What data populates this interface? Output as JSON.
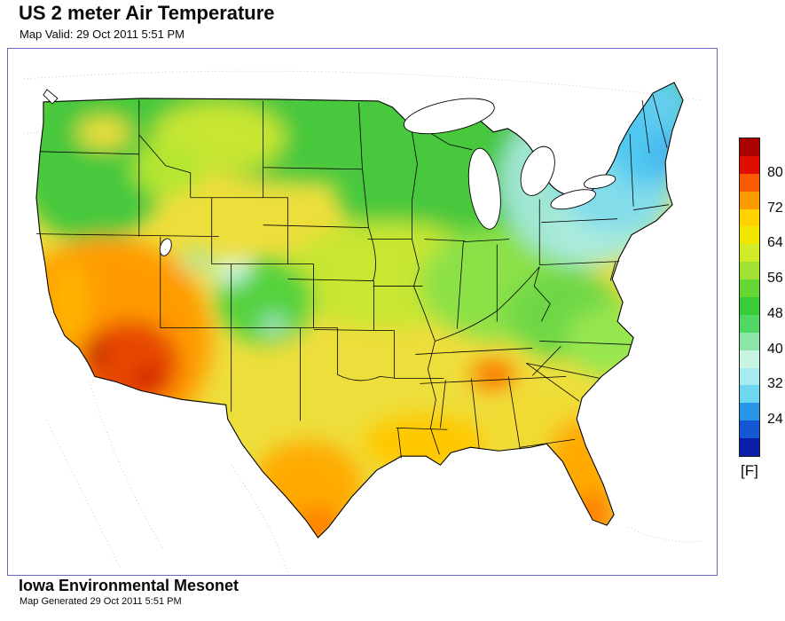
{
  "header": {
    "title": "US 2 meter Air Temperature",
    "valid_time": "Map Valid: 29 Oct 2011 5:51 PM"
  },
  "colorbar": {
    "unit_label": "[F]",
    "ticks": [
      80,
      72,
      64,
      56,
      48,
      40,
      32,
      24
    ],
    "colors_top_to_bottom": [
      "#aa0000",
      "#e10e00",
      "#fa5a00",
      "#ff9b00",
      "#ffd200",
      "#f0e600",
      "#d2eb28",
      "#a0e132",
      "#64d732",
      "#37cd37",
      "#50d764",
      "#8ce6aa",
      "#c8f5e1",
      "#a5ebf0",
      "#6ed7f0",
      "#2896e6",
      "#1457d2",
      "#0a1eaa"
    ]
  },
  "map": {
    "frame_border_color": "#6464c8",
    "land_outline_color": "#000000",
    "graticule_color": "#f0b9b9"
  },
  "footer": {
    "org": "Iowa Environmental Mesonet",
    "generated": "Map Generated 29 Oct 2011 5:51 PM"
  }
}
